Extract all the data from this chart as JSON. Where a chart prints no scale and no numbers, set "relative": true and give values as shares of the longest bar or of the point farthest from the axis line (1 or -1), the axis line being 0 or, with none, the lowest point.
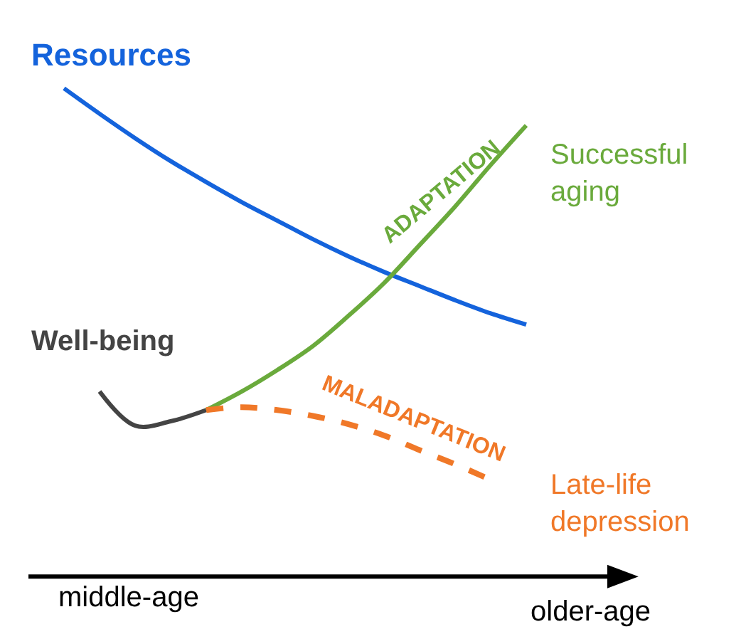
{
  "chart_data": {
    "type": "line",
    "relative": true,
    "legend": false,
    "marker": "none",
    "categories": [
      null,
      null,
      null,
      null,
      null,
      null,
      null,
      null,
      null,
      null,
      null,
      null,
      null,
      null
    ],
    "series": [
      {
        "name": "Resources",
        "color": "#1463dc",
        "line_style": "solid",
        "values": [
          1.0,
          0.948,
          0.898,
          0.851,
          0.808,
          0.767,
          0.729,
          0.691,
          0.656,
          0.624,
          0.595,
          0.566,
          0.539,
          0.516
        ]
      },
      {
        "name": "Well-being",
        "color": "#444444",
        "line_style": "solid",
        "values": [
          null,
          0.379,
          0.309,
          0.318,
          0.341,
          null,
          null,
          null,
          null,
          null,
          null,
          null,
          null,
          null
        ]
      },
      {
        "name": "Successful aging",
        "color": "#6aaa3c",
        "line_style": "solid",
        "values": [
          null,
          null,
          null,
          null,
          0.341,
          0.379,
          0.423,
          0.472,
          0.534,
          0.601,
          0.679,
          0.758,
          0.843,
          0.924
        ]
      },
      {
        "name": "Late-life depression",
        "color": "#f07828",
        "line_style": "dashed",
        "values": [
          null,
          null,
          null,
          null,
          0.341,
          0.347,
          0.341,
          0.329,
          0.312,
          0.289,
          0.259,
          0.23,
          0.198,
          null
        ]
      }
    ],
    "annotations": [
      "ADAPTATION",
      "MALADAPTATION",
      "middle-age",
      "older-age"
    ]
  }
}
